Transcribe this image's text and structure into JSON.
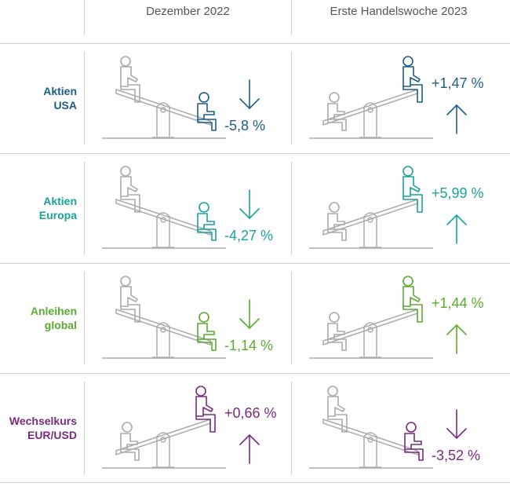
{
  "headers": {
    "col1": "Dezember 2022",
    "col2": "Erste Handelswoche 2023"
  },
  "rows": [
    {
      "label_line1": "Aktien",
      "label_line2": "USA",
      "color": "#1c5d8a",
      "dec": {
        "value": "-5,8 %",
        "direction": "down"
      },
      "jan": {
        "value": "+1,47 %",
        "direction": "up"
      }
    },
    {
      "label_line1": "Aktien",
      "label_line2": "Europa",
      "color": "#1aa39a",
      "dec": {
        "value": "-4,27 %",
        "direction": "down"
      },
      "jan": {
        "value": "+5,99 %",
        "direction": "up"
      }
    },
    {
      "label_line1": "Anleihen",
      "label_line2": "global",
      "color": "#5aab2e",
      "dec": {
        "value": "-1,14 %",
        "direction": "down"
      },
      "jan": {
        "value": "+1,44 %",
        "direction": "up"
      }
    },
    {
      "label_line1": "Wechselkurs",
      "label_line2": "EUR/USD",
      "color": "#7a2a83",
      "dec": {
        "value": "+0,66 %",
        "direction": "up"
      },
      "jan": {
        "value": "-3,52 %",
        "direction": "down"
      }
    }
  ],
  "icons": {
    "seesaw": "seesaw-icon",
    "arrow_up": "arrow-up-icon",
    "arrow_down": "arrow-down-icon"
  },
  "neutral_color": "#aaaaaa"
}
